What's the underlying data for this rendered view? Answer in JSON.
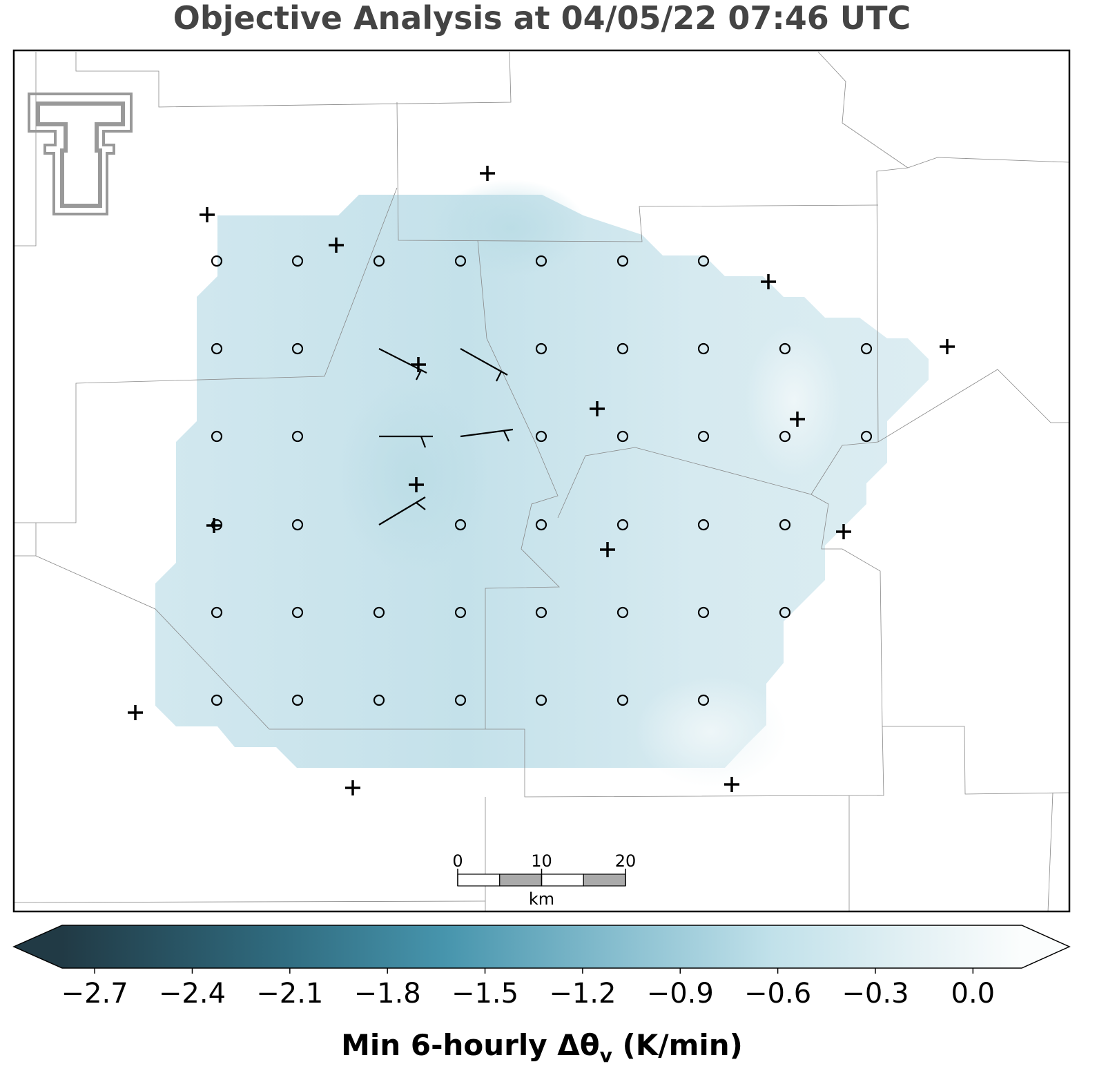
{
  "title": "Objective Analysis at 04/05/22 07:46 UTC",
  "colorbar": {
    "range": [
      -2.8,
      0.15
    ],
    "ticks": [
      {
        "value": -2.7,
        "label": "−2.7"
      },
      {
        "value": -2.4,
        "label": "−2.4"
      },
      {
        "value": -2.1,
        "label": "−2.1"
      },
      {
        "value": -1.8,
        "label": "−1.8"
      },
      {
        "value": -1.5,
        "label": "−1.5"
      },
      {
        "value": -1.2,
        "label": "−1.2"
      },
      {
        "value": -0.9,
        "label": "−0.9"
      },
      {
        "value": -0.6,
        "label": "−0.6"
      },
      {
        "value": -0.3,
        "label": "−0.3"
      },
      {
        "value": 0.0,
        "label": "0.0"
      }
    ],
    "label": {
      "text": "Min 6-hourly Δθ",
      "subscript": "v",
      "suffix": " (K/min)"
    }
  },
  "scale_bar": {
    "ticks": [
      0,
      10,
      20
    ],
    "range": [
      0,
      20
    ],
    "unit": "km"
  }
}
